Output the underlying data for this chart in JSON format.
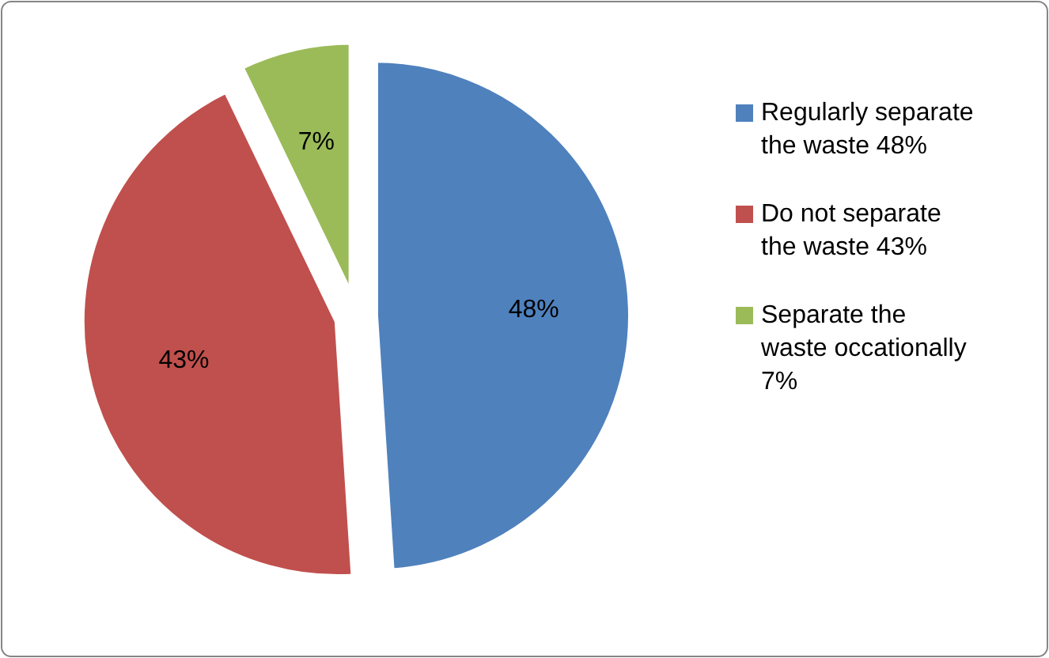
{
  "chart_data": {
    "type": "pie",
    "categories": [
      "Regularly separate the waste 48%",
      "Do not separate the waste 43%",
      "Separate the waste occationally 7%"
    ],
    "values": [
      48,
      43,
      7
    ],
    "colors": [
      "#4f81bd",
      "#c0504d",
      "#9bbb59"
    ],
    "value_labels": [
      "48%",
      "43%",
      "7%"
    ],
    "legend": "right"
  }
}
